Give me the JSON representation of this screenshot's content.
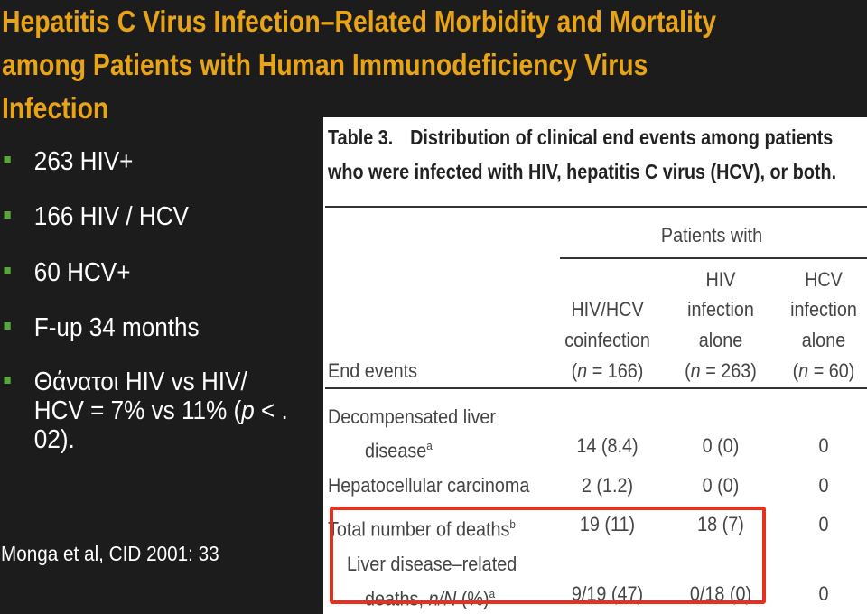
{
  "slide": {
    "title_lines": [
      "Hepatitis C Virus Infection–Related Morbidity and Mortality",
      "among Patients with Human Immunodeficiency Virus",
      "Infection"
    ],
    "bullets": [
      "263 HIV+",
      "166 HIV / HCV",
      "60 HCV+",
      "F-up 34 months",
      "Θάνατοι HIV vs HIV/ HCV = 7% vs 11% (p < . 02)."
    ],
    "citation": "Monga et al, CID 2001: 33"
  },
  "table": {
    "caption_number": "Table 3.",
    "caption_line1": "Distribution of clinical end events among patients",
    "caption_line2": "who were infected with HIV, hepatitis C virus (HCV), or both.",
    "group_header": "Patients with",
    "columns": [
      {
        "line1": "",
        "line2": "HIV/HCV",
        "line3": "coinfection",
        "n": "(n = 166)"
      },
      {
        "line1": "HIV",
        "line2": "infection",
        "line3": "alone",
        "n": "(n = 263)"
      },
      {
        "line1": "HCV",
        "line2": "infection",
        "line3": "alone",
        "n": "(n = 60)"
      }
    ],
    "row_header_label": "End events",
    "rows": [
      {
        "label1": "Decompensated liver",
        "label2": "disease",
        "sup": "a",
        "values": [
          "14 (8.4)",
          "0 (0)",
          "0"
        ]
      },
      {
        "label1": "Hepatocellular carcinoma",
        "label2": "",
        "sup": "",
        "values": [
          "2 (1.2)",
          "0 (0)",
          "0"
        ]
      },
      {
        "label1": "Total number of deaths",
        "label2": "",
        "sup": "b",
        "values": [
          "19 (11)",
          "18 (7)",
          "0"
        ]
      },
      {
        "label1": "Liver disease–related",
        "label2": "deaths, n/N (%)",
        "sup": "a",
        "values": [
          "9/19 (47)",
          "0/18 (0)",
          "0"
        ]
      }
    ],
    "highlight_color": "#e8301e"
  },
  "colors": {
    "background": "#1c1c1c",
    "title": "#e8a317",
    "bullet_marker": "#5aa63a",
    "text": "#ffffff"
  }
}
